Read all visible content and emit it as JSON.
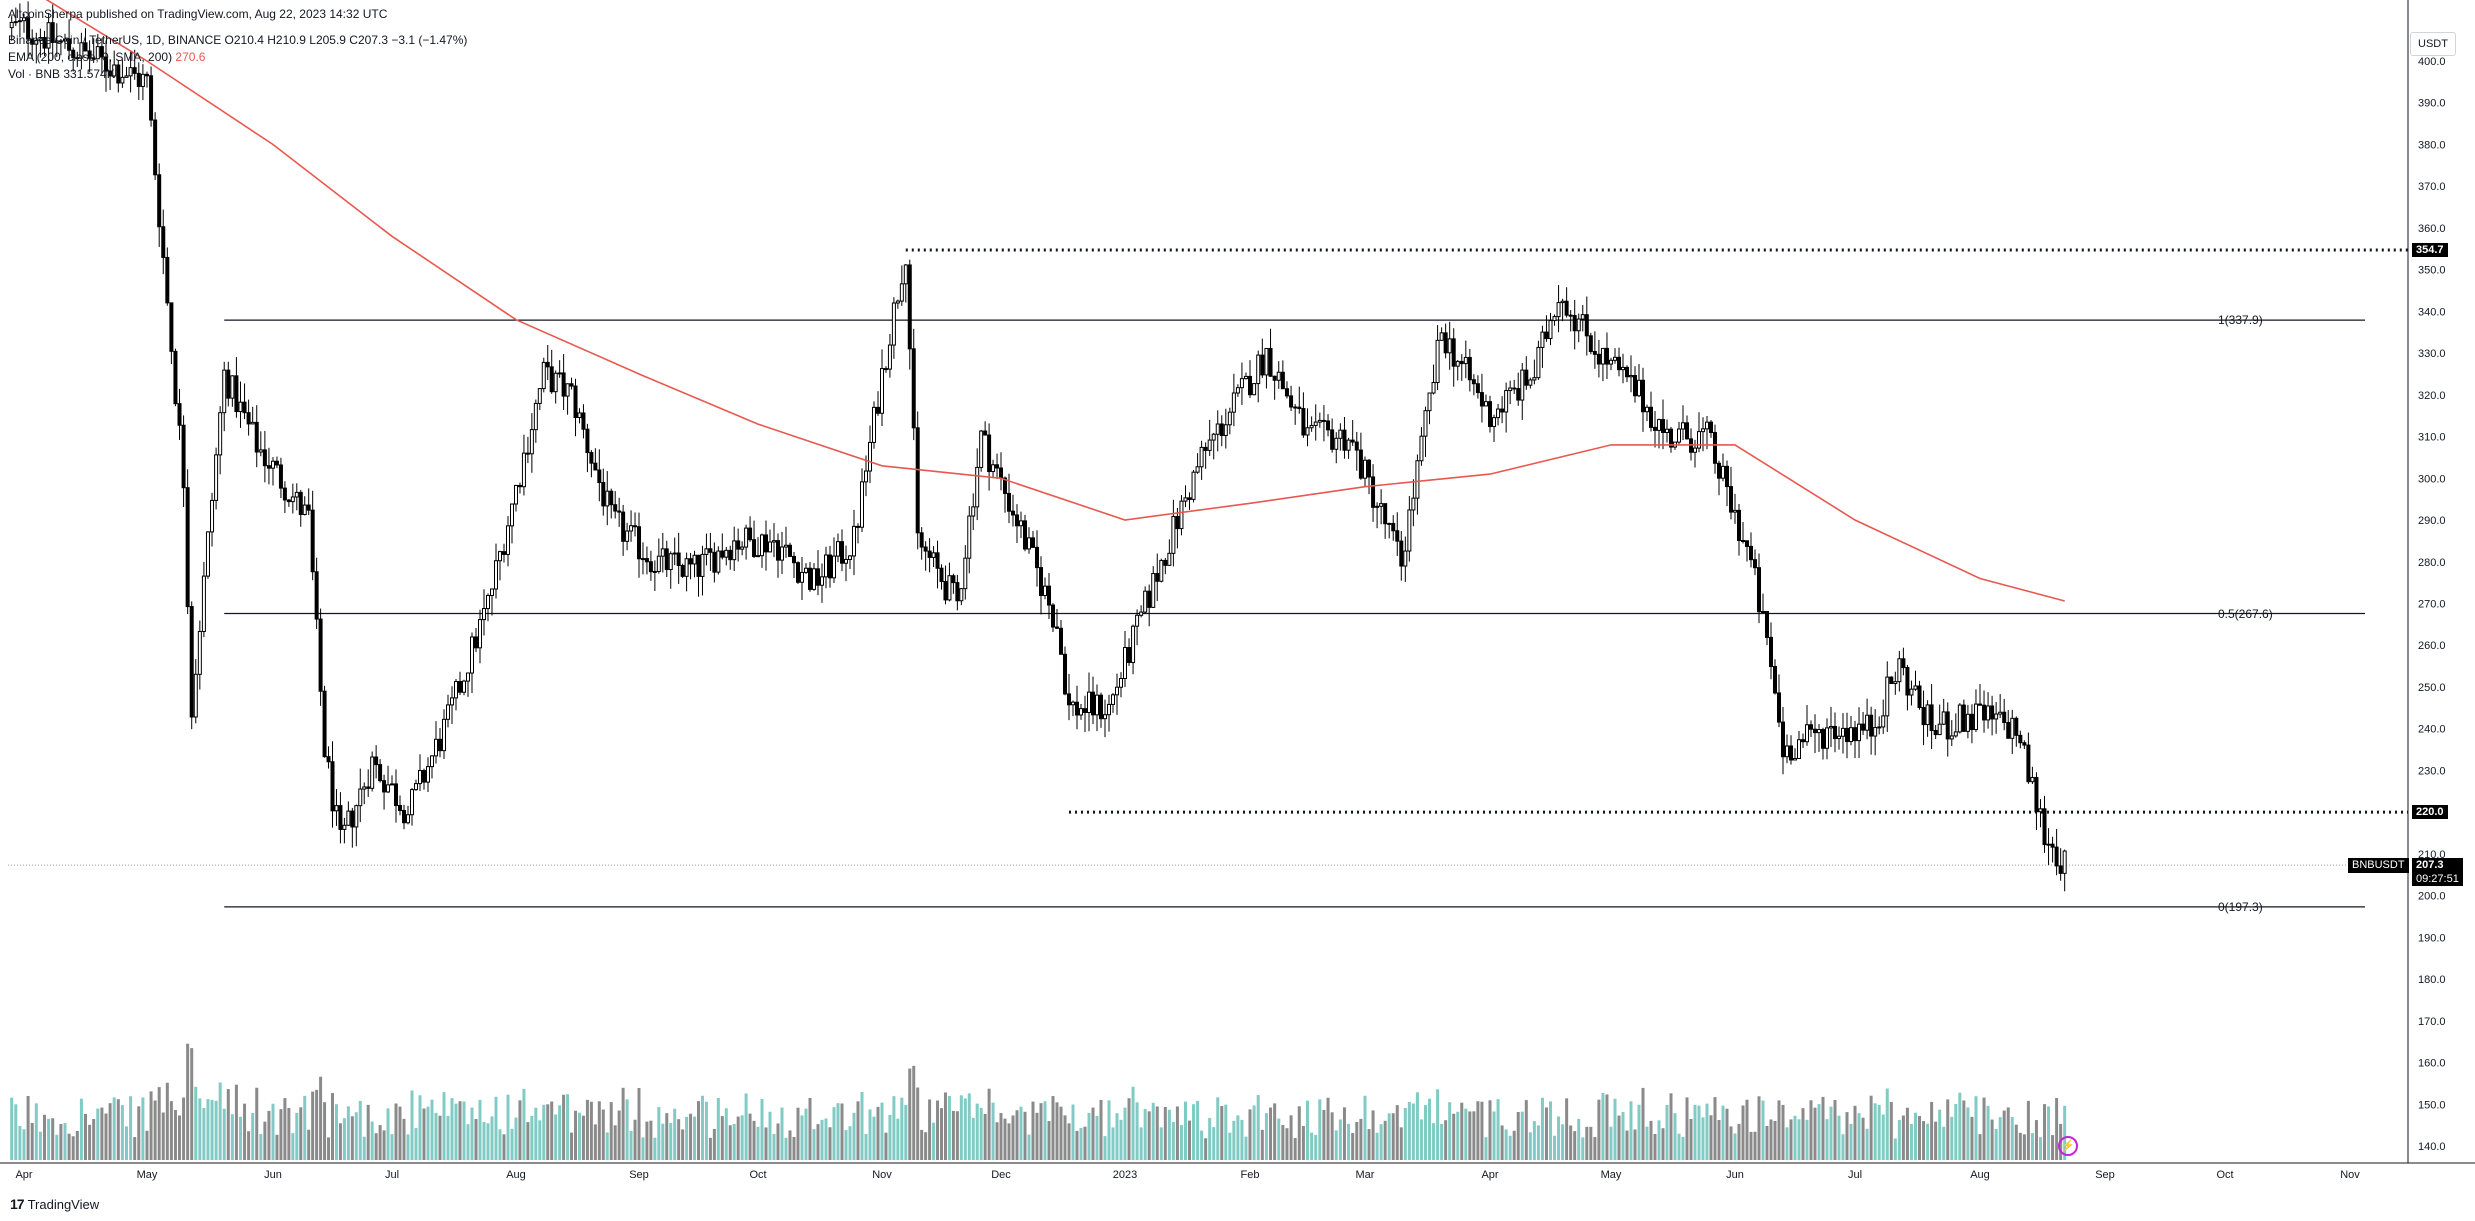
{
  "header": {
    "publish_line": "AltcoinSherpa published on TradingView.com, Aug 22, 2023 14:32 UTC",
    "main_legend": "Binance Coin / TetherUS, 1D, BINANCE  O210.4  H210.9  L205.9  C207.3  −3.1 (−1.47%)",
    "ema_legend": "EMA (200, close, 0, SMA, 200)",
    "ema_value": "270.6",
    "vol_legend": "Vol · BNB  331.574K"
  },
  "toolbar": {
    "unit_label": "USDT"
  },
  "footer": {
    "brand_logo": "17",
    "brand_text": "TradingView"
  },
  "chart_data": {
    "type": "candlestick",
    "symbol": "BNBUSDT",
    "y_axis": {
      "ticks": [
        "400.0",
        "390.0",
        "380.0",
        "370.0",
        "360.0",
        "350.0",
        "340.0",
        "330.0",
        "320.0",
        "310.0",
        "300.0",
        "290.0",
        "280.0",
        "270.0",
        "260.0",
        "250.0",
        "240.0",
        "230.0",
        "220.0",
        "210.0",
        "200.0",
        "190.0",
        "180.0",
        "170.0",
        "160.0",
        "150.0",
        "140.0"
      ],
      "range": [
        135,
        402
      ]
    },
    "x_axis": {
      "ticks": [
        "Apr",
        "May",
        "Jun",
        "Jul",
        "Aug",
        "Sep",
        "Oct",
        "Nov",
        "Dec",
        "2023",
        "Feb",
        "Mar",
        "Apr",
        "May",
        "Jun",
        "Jul",
        "Aug",
        "Sep",
        "Oct",
        "Nov"
      ]
    },
    "price_series": [
      {
        "date": "Apr 2022",
        "value": 408
      },
      {
        "date": "May 2022",
        "value": 395
      },
      {
        "date": "May 10 2022",
        "value": 300
      },
      {
        "date": "May 12 2022",
        "value": 245
      },
      {
        "date": "May 20 2022",
        "value": 325
      },
      {
        "date": "May 28 2022",
        "value": 308
      },
      {
        "date": "Jun 10 2022",
        "value": 290
      },
      {
        "date": "Jun 14 2022",
        "value": 235
      },
      {
        "date": "Jun 18 2022",
        "value": 212
      },
      {
        "date": "Jun 26 2022",
        "value": 232
      },
      {
        "date": "Jul 5 2022",
        "value": 220
      },
      {
        "date": "Jul 15 2022",
        "value": 242
      },
      {
        "date": "Jul 25 2022",
        "value": 270
      },
      {
        "date": "Aug 8 2022",
        "value": 325
      },
      {
        "date": "Aug 15 2022",
        "value": 320
      },
      {
        "date": "Aug 25 2022",
        "value": 290
      },
      {
        "date": "Sep 5 2022",
        "value": 280
      },
      {
        "date": "Sep 15 2022",
        "value": 278
      },
      {
        "date": "Sep 25 2022",
        "value": 285
      },
      {
        "date": "Oct 5 2022",
        "value": 285
      },
      {
        "date": "Oct 15 2022",
        "value": 275
      },
      {
        "date": "Oct 25 2022",
        "value": 285
      },
      {
        "date": "Nov 1 2022",
        "value": 325
      },
      {
        "date": "Nov 7 2022",
        "value": 355
      },
      {
        "date": "Nov 10 2022",
        "value": 285
      },
      {
        "date": "Nov 20 2022",
        "value": 270
      },
      {
        "date": "Nov 26 2022",
        "value": 310
      },
      {
        "date": "Dec 5 2022",
        "value": 290
      },
      {
        "date": "Dec 15 2022",
        "value": 265
      },
      {
        "date": "Dec 18 2022",
        "value": 245
      },
      {
        "date": "Dec 28 2022",
        "value": 245
      },
      {
        "date": "Jan 10 2023",
        "value": 280
      },
      {
        "date": "Jan 20 2023",
        "value": 305
      },
      {
        "date": "Feb 5 2023",
        "value": 330
      },
      {
        "date": "Feb 15 2023",
        "value": 310
      },
      {
        "date": "Feb 25 2023",
        "value": 310
      },
      {
        "date": "Mar 10 2023",
        "value": 280
      },
      {
        "date": "Mar 20 2023",
        "value": 335
      },
      {
        "date": "Apr 1 2023",
        "value": 315
      },
      {
        "date": "Apr 12 2023",
        "value": 325
      },
      {
        "date": "Apr 18 2023",
        "value": 345
      },
      {
        "date": "Apr 28 2023",
        "value": 330
      },
      {
        "date": "May 8 2023",
        "value": 320
      },
      {
        "date": "May 15 2023",
        "value": 310
      },
      {
        "date": "May 25 2023",
        "value": 310
      },
      {
        "date": "Jun 5 2023",
        "value": 280
      },
      {
        "date": "Jun 10 2023",
        "value": 255
      },
      {
        "date": "Jun 13 2023",
        "value": 235
      },
      {
        "date": "Jun 25 2023",
        "value": 240
      },
      {
        "date": "Jul 5 2023",
        "value": 240
      },
      {
        "date": "Jul 12 2023",
        "value": 255
      },
      {
        "date": "Jul 20 2023",
        "value": 240
      },
      {
        "date": "Aug 1 2023",
        "value": 243
      },
      {
        "date": "Aug 10 2023",
        "value": 240
      },
      {
        "date": "Aug 17 2023",
        "value": 215
      },
      {
        "date": "Aug 22 2023",
        "value": 207
      }
    ],
    "ema_series": [
      {
        "date": "Apr 2022",
        "value": 418
      },
      {
        "date": "May 2022",
        "value": 400
      },
      {
        "date": "Jun 2022",
        "value": 380
      },
      {
        "date": "Jul 2022",
        "value": 358
      },
      {
        "date": "Aug 2022",
        "value": 338
      },
      {
        "date": "Sep 2022",
        "value": 325
      },
      {
        "date": "Oct 2022",
        "value": 313
      },
      {
        "date": "Nov 2022",
        "value": 303
      },
      {
        "date": "Dec 2022",
        "value": 300
      },
      {
        "date": "Jan 2023",
        "value": 290
      },
      {
        "date": "Feb 2023",
        "value": 294
      },
      {
        "date": "Mar 2023",
        "value": 298
      },
      {
        "date": "Apr 2023",
        "value": 301
      },
      {
        "date": "May 2023",
        "value": 308
      },
      {
        "date": "Jun 2023",
        "value": 308
      },
      {
        "date": "Jul 2023",
        "value": 290
      },
      {
        "date": "Aug 2023",
        "value": 276
      },
      {
        "date": "Aug 22 2023",
        "value": 270.6
      }
    ],
    "annotations": {
      "resistance": {
        "value": 354.7,
        "label": "354.7",
        "style": "dotted"
      },
      "support": {
        "value": 220.0,
        "label": "220.0",
        "style": "dotted"
      },
      "fib_levels": [
        {
          "label": "1(337.9)",
          "value": 337.9
        },
        {
          "label": "0.5(267.6)",
          "value": 267.6
        },
        {
          "label": "0(197.3)",
          "value": 197.3
        }
      ],
      "last_price": {
        "value": 207.3,
        "label": "207.3",
        "countdown": "09:27:51",
        "symbol_label": "BNBUSDT"
      }
    },
    "colors": {
      "candle": "#000000",
      "ema": "#e8584f",
      "volume_up": "#80cbc4",
      "volume_down": "#8a8a8a",
      "grid": "#f0f3fa"
    },
    "grid": false
  }
}
